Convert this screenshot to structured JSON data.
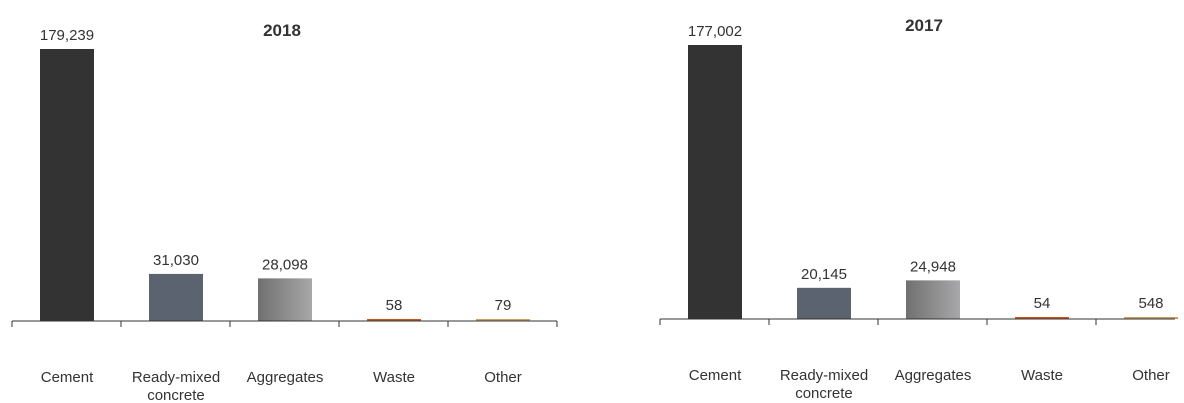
{
  "colors": {
    "Cement": "#333333",
    "Ready-mixed concrete": "#5c6370",
    "Aggregates": [
      "#707070",
      "#a8a8aa"
    ],
    "Waste": "#c8561e",
    "Other": "#c8a060",
    "axis": "#333333",
    "text": "#333333"
  },
  "chart_data": [
    {
      "type": "bar",
      "title": "2018",
      "categories": [
        "Cement",
        "Ready-mixed concrete",
        "Aggregates",
        "Waste",
        "Other"
      ],
      "category_labels": [
        [
          "Cement"
        ],
        [
          "Ready-mixed",
          "concrete"
        ],
        [
          "Aggregates"
        ],
        [
          "Waste"
        ],
        [
          "Other"
        ]
      ],
      "values": [
        179239,
        31030,
        28098,
        58,
        79
      ],
      "value_labels": [
        "179,239",
        "31,030",
        "28,098",
        "58",
        "79"
      ],
      "ylim": [
        0,
        179239
      ],
      "grid": false
    },
    {
      "type": "bar",
      "title": "2017",
      "categories": [
        "Cement",
        "Ready-mixed concrete",
        "Aggregates",
        "Waste",
        "Other"
      ],
      "category_labels": [
        [
          "Cement"
        ],
        [
          "Ready-mixed",
          "concrete"
        ],
        [
          "Aggregates"
        ],
        [
          "Waste"
        ],
        [
          "Other"
        ]
      ],
      "values": [
        177002,
        20145,
        24948,
        54,
        548
      ],
      "value_labels": [
        "177,002",
        "20,145",
        "24,948",
        "54",
        "548"
      ],
      "ylim": [
        0,
        177002
      ],
      "grid": false
    }
  ]
}
